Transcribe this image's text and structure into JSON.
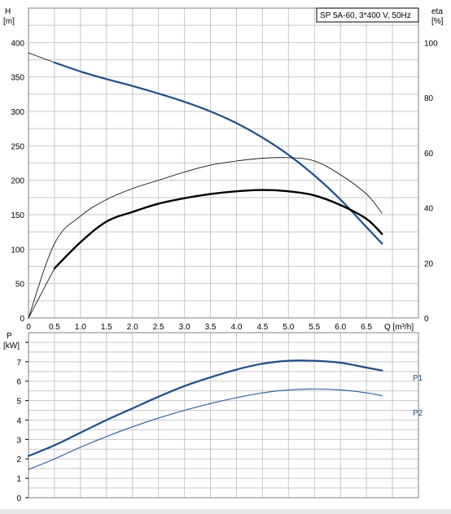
{
  "chart_data": [
    {
      "type": "line",
      "title": "SP 5A-60, 3*400 V, 50Hz",
      "xlabel": "Q [m³/h]",
      "ylabel": "H\n[m]",
      "y2label": "eta\n[%]",
      "xlim": [
        0,
        7.5
      ],
      "ylim": [
        0,
        450
      ],
      "y2lim": [
        0,
        112.5
      ],
      "x_ticks": [
        "0",
        "0.5",
        "1.0",
        "1.5",
        "2.0",
        "2.5",
        "3.0",
        "3.5",
        "4.0",
        "4.5",
        "5.0",
        "5.5",
        "6.0",
        "6.5"
      ],
      "y_ticks": [
        "0",
        "50",
        "100",
        "150",
        "200",
        "250",
        "300",
        "350",
        "400"
      ],
      "y2_ticks": [
        "0",
        "20",
        "40",
        "60",
        "80",
        "100"
      ],
      "grid": true,
      "series": [
        {
          "name": "",
          "axis": "left",
          "style": "thin-black",
          "x": [
            0,
            0.5
          ],
          "y": [
            385,
            371
          ]
        },
        {
          "name": "",
          "axis": "left",
          "style": "thick-blue",
          "x": [
            0.5,
            1.0,
            1.5,
            2.0,
            2.5,
            3.0,
            3.5,
            4.0,
            4.5,
            5.0,
            5.5,
            6.0,
            6.5,
            6.8
          ],
          "y": [
            371,
            358,
            347,
            337,
            326,
            314,
            300,
            283,
            262,
            237,
            207,
            172,
            132,
            108
          ]
        },
        {
          "name": "",
          "axis": "right",
          "style": "thin-black",
          "x": [
            0,
            0.5,
            1.0,
            1.5,
            2.0,
            2.5,
            3.0,
            3.5,
            4.0,
            4.5,
            5.0,
            5.5,
            6.0,
            6.5,
            6.8
          ],
          "y": [
            0,
            27,
            37,
            43,
            47,
            50,
            53,
            55.5,
            57,
            58,
            58.2,
            57,
            52,
            45,
            38
          ]
        },
        {
          "name": "",
          "axis": "right",
          "style": "thin-black",
          "x": [
            0,
            0.5
          ],
          "y": [
            0,
            18
          ]
        },
        {
          "name": "",
          "axis": "right",
          "style": "thick-black",
          "x": [
            0.5,
            1.0,
            1.5,
            2.0,
            2.5,
            3.0,
            3.5,
            4.0,
            4.5,
            5.0,
            5.5,
            6.0,
            6.5,
            6.8
          ],
          "y": [
            18,
            27.5,
            35,
            38.5,
            41.5,
            43.5,
            45,
            46,
            46.5,
            46,
            44.5,
            41,
            36,
            30.5
          ]
        }
      ]
    },
    {
      "type": "line",
      "ylabel": "P\n[kW]",
      "xlim": [
        0,
        7.5
      ],
      "ylim": [
        0,
        8.5
      ],
      "y_ticks": [
        "0",
        "1",
        "2",
        "3",
        "4",
        "5",
        "6",
        "7"
      ],
      "grid": true,
      "series": [
        {
          "name": "P1",
          "axis": "left",
          "style": "thick-blue",
          "x": [
            0,
            0.5,
            1.0,
            1.5,
            2.0,
            2.5,
            3.0,
            3.5,
            4.0,
            4.5,
            5.0,
            5.5,
            6.0,
            6.5,
            6.8
          ],
          "y": [
            2.15,
            2.7,
            3.35,
            4.0,
            4.6,
            5.2,
            5.75,
            6.2,
            6.6,
            6.9,
            7.05,
            7.05,
            6.95,
            6.7,
            6.55
          ]
        },
        {
          "name": "P2",
          "axis": "left",
          "style": "thin-blue",
          "x": [
            0,
            0.5,
            1.0,
            1.5,
            2.0,
            2.5,
            3.0,
            3.5,
            4.0,
            4.5,
            5.0,
            5.5,
            6.0,
            6.5,
            6.8
          ],
          "y": [
            1.45,
            2.0,
            2.6,
            3.15,
            3.65,
            4.1,
            4.5,
            4.85,
            5.15,
            5.4,
            5.55,
            5.6,
            5.55,
            5.4,
            5.25
          ]
        }
      ]
    }
  ],
  "colors": {
    "grid": "#c8c8c8",
    "axis": "#000000",
    "thick_blue": "#1f4e86",
    "thin_blue": "#2a5a9a",
    "thin_black": "#000000",
    "thick_black": "#000000",
    "bottom_band": "#e8e8e8"
  }
}
